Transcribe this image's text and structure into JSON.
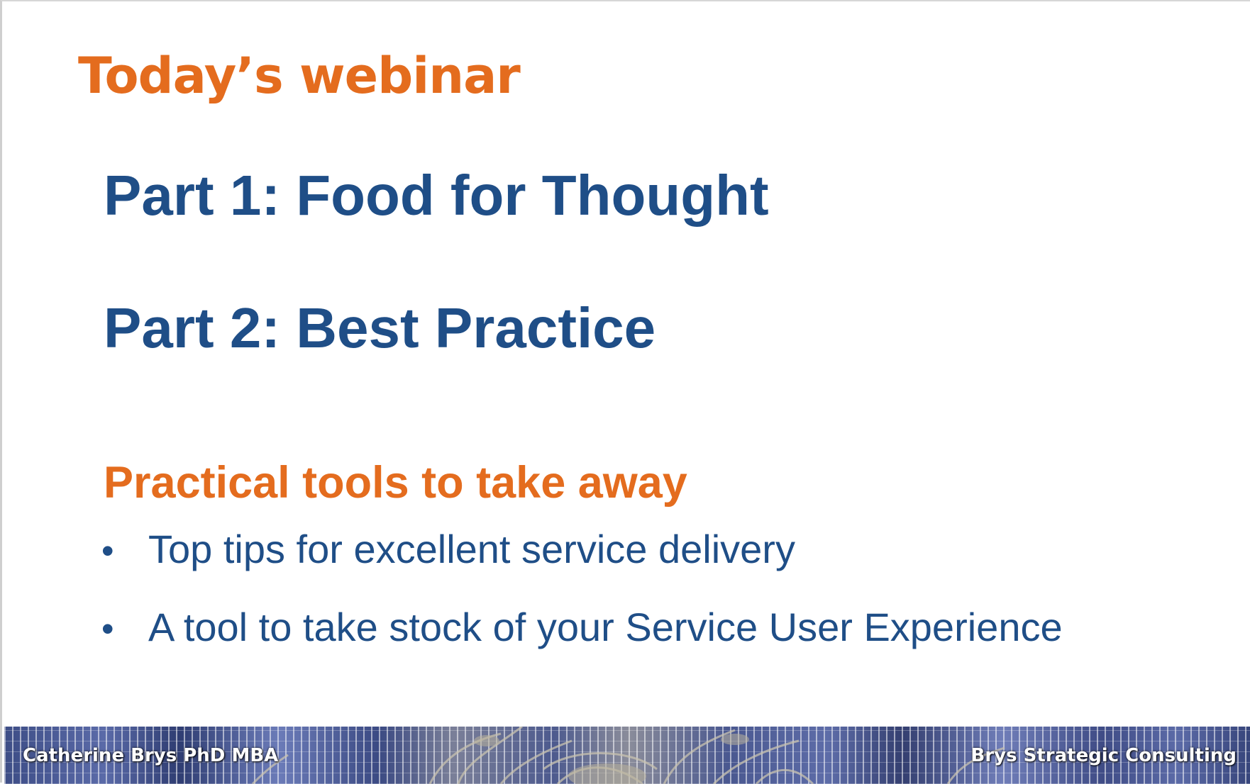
{
  "slide": {
    "title": "Today’s webinar",
    "parts": [
      "Part 1: Food for Thought",
      "Part 2: Best Practice"
    ],
    "tools_heading": "Practical tools to take away",
    "bullet_char": "•",
    "bullets": [
      "Top tips for excellent service delivery",
      "A tool to take stock of your Service User Experience"
    ]
  },
  "footer": {
    "left_text": "Catherine Brys PhD MBA",
    "right_text": "Brys Strategic Consulting",
    "image_icon": "sculpture-over-glass-facade-banner"
  },
  "colors": {
    "title_orange": "#e46c1e",
    "body_blue": "#1f4e87",
    "background": "#ffffff"
  }
}
